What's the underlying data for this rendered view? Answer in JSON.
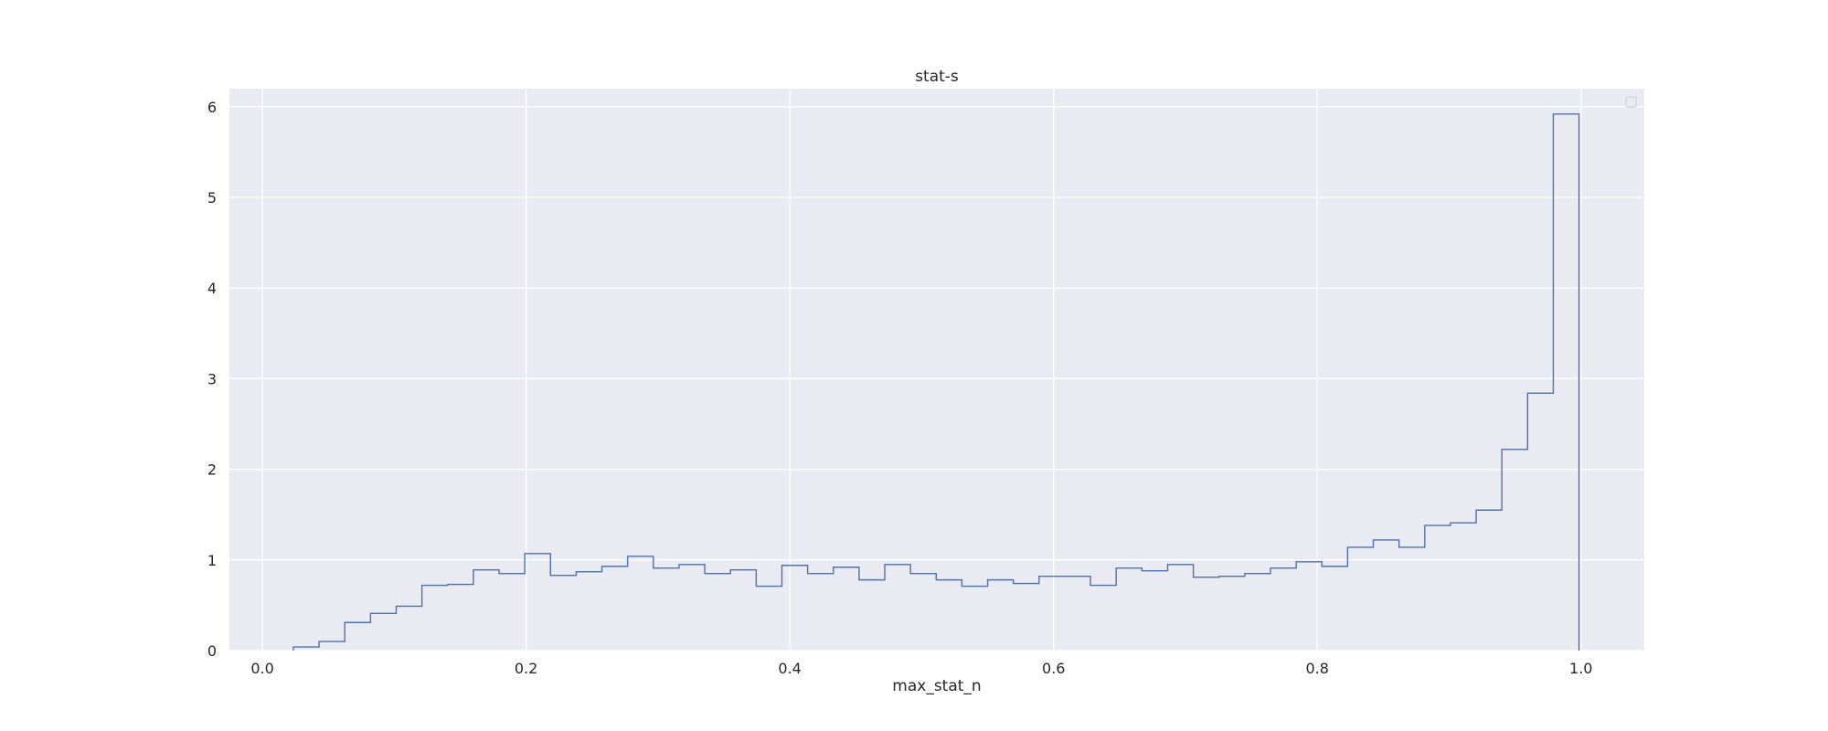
{
  "chart_data": {
    "type": "histogram-step",
    "title": "stat-s",
    "xlabel": "max_stat_n",
    "ylabel": "",
    "xlim": [
      -0.025,
      1.048
    ],
    "ylim": [
      0,
      6.2
    ],
    "xticks": [
      "0.0",
      "0.2",
      "0.4",
      "0.6",
      "0.8",
      "1.0"
    ],
    "xtick_values": [
      0.0,
      0.2,
      0.4,
      0.6,
      0.8,
      1.0
    ],
    "yticks": [
      "0",
      "1",
      "2",
      "3",
      "4",
      "5",
      "6"
    ],
    "ytick_values": [
      0,
      1,
      2,
      3,
      4,
      5,
      6
    ],
    "grid": true,
    "legend": "top-right (empty)",
    "colors": {
      "background": "#eaeaf2",
      "grid": "#ffffff",
      "line": "#4c72b0"
    },
    "bin_edges": [
      0.0235,
      0.043,
      0.0625,
      0.082,
      0.1015,
      0.121,
      0.1405,
      0.16,
      0.1795,
      0.199,
      0.2185,
      0.238,
      0.2575,
      0.277,
      0.2965,
      0.316,
      0.3355,
      0.355,
      0.3745,
      0.394,
      0.4135,
      0.433,
      0.4525,
      0.472,
      0.4915,
      0.511,
      0.5305,
      0.55,
      0.5695,
      0.589,
      0.6085,
      0.628,
      0.6475,
      0.667,
      0.6865,
      0.706,
      0.7255,
      0.745,
      0.7645,
      0.784,
      0.8035,
      0.823,
      0.8425,
      0.862,
      0.8815,
      0.901,
      0.9205,
      0.94,
      0.9595,
      0.979,
      0.9985
    ],
    "values": [
      0.04,
      0.1,
      0.31,
      0.41,
      0.49,
      0.72,
      0.73,
      0.89,
      0.85,
      1.07,
      0.83,
      0.87,
      0.93,
      1.04,
      0.91,
      0.95,
      0.85,
      0.89,
      0.71,
      0.94,
      0.85,
      0.92,
      0.78,
      0.95,
      0.85,
      0.78,
      0.71,
      0.78,
      0.74,
      0.82,
      0.82,
      0.72,
      0.91,
      0.88,
      0.95,
      0.81,
      0.82,
      0.85,
      0.91,
      0.98,
      0.93,
      1.14,
      1.22,
      1.14,
      1.38,
      1.41,
      1.55,
      2.22,
      2.84,
      5.92
    ]
  }
}
